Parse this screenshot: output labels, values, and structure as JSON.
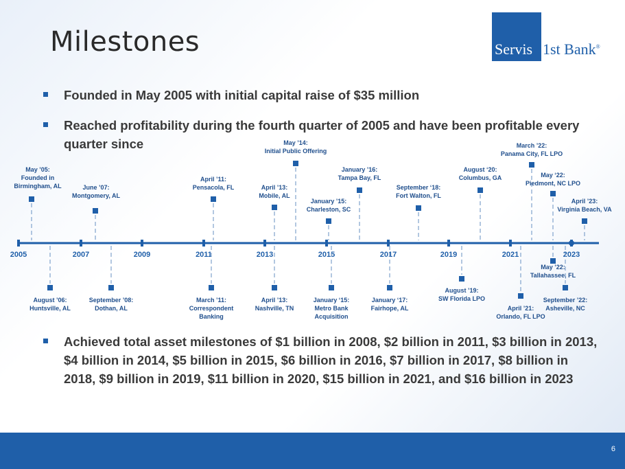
{
  "title": "Milestones",
  "logo": {
    "box_text": "Servis",
    "rest_text": "1st Bank",
    "reg": "®"
  },
  "bullets": [
    "Founded in May 2005 with initial capital raise of $35 million",
    "Reached profitability during the fourth quarter of 2005 and have been profitable every quarter since",
    "Achieved total asset milestones of $1 billion in 2008, $2 billion in 2011, $3 billion in 2013, $4 billion in 2014, $5 billion in 2015, $6 billion in 2016, $7 billion in 2017, $8 billion in 2018, $9 billion in 2019, $11 billion in 2020, $15 billion in 2021, and $16 billion in 2023"
  ],
  "timeline": {
    "years": [
      "2005",
      "2007",
      "2009",
      "2011",
      "2013",
      "2015",
      "2017",
      "2019",
      "2021",
      "2023"
    ],
    "above": [
      {
        "lines": [
          "May ’05:",
          "Founded in",
          "Birmingham, AL"
        ]
      },
      {
        "lines": [
          "June ’07:",
          "Montgomery, AL"
        ]
      },
      {
        "lines": [
          "April ’11:",
          "Pensacola, FL"
        ]
      },
      {
        "lines": [
          "April ’13:",
          "Mobile, AL"
        ]
      },
      {
        "lines": [
          "May ’14:",
          "Initial Public Offering"
        ]
      },
      {
        "lines": [
          "January ’15:",
          "Charleston, SC"
        ]
      },
      {
        "lines": [
          "January ’16:",
          "Tampa Bay, FL"
        ]
      },
      {
        "lines": [
          "September ‘18:",
          "Fort Walton, FL"
        ]
      },
      {
        "lines": [
          "August ‘20:",
          "Columbus, GA"
        ]
      },
      {
        "lines": [
          "March ’22:",
          "Panama City, FL LPO"
        ]
      },
      {
        "lines": [
          "May ‘22:",
          "Piedmont, NC LPO"
        ]
      },
      {
        "lines": [
          "April ’23:",
          "Virginia Beach, VA"
        ]
      }
    ],
    "below": [
      {
        "lines": [
          "August ’06:",
          "Huntsville, AL"
        ]
      },
      {
        "lines": [
          "September ’08:",
          "Dothan, AL"
        ]
      },
      {
        "lines": [
          "March ’11:",
          "Correspondent",
          "Banking"
        ]
      },
      {
        "lines": [
          "April ’13:",
          "Nashville, TN"
        ]
      },
      {
        "lines": [
          "January ‘15:",
          "Metro Bank",
          "Acquisition"
        ]
      },
      {
        "lines": [
          "January ‘17:",
          "Fairhope, AL"
        ]
      },
      {
        "lines": [
          "August ’19:",
          "SW Florida LPO"
        ]
      },
      {
        "lines": [
          "April ’21:",
          "Orlando, FL LPO"
        ]
      },
      {
        "lines": [
          "May ’22:",
          "Tallahassee, FL"
        ]
      },
      {
        "lines": [
          "September ’22:",
          "Asheville, NC"
        ]
      }
    ]
  },
  "page_number": "6",
  "colors": {
    "brand": "#1f5fa9",
    "label": "#1f4e8c",
    "text": "#3a3a3a"
  }
}
